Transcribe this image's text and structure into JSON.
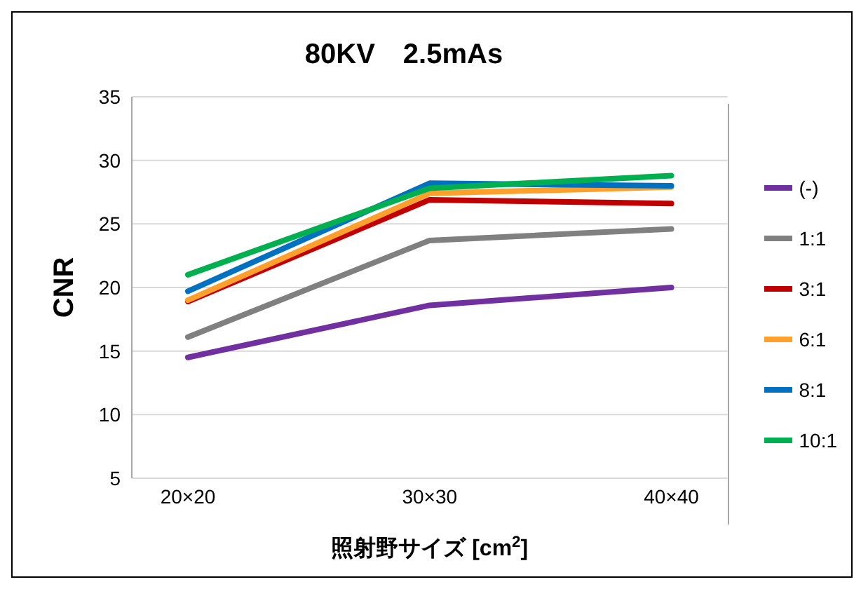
{
  "chart_data": {
    "type": "line",
    "title": "80KV　2.5mAs",
    "xlabel": "照射野サイズ  [cm$^{2}$]",
    "ylabel": "CNR",
    "categories": [
      "20×20",
      "30×30",
      "40×40"
    ],
    "series": [
      {
        "name": "(-)",
        "color": "#7030a0",
        "values": [
          14.5,
          18.6,
          20.0
        ]
      },
      {
        "name": "1:1",
        "color": "#808080",
        "values": [
          16.1,
          23.7,
          24.6
        ]
      },
      {
        "name": "3:1",
        "color": "#c00000",
        "values": [
          18.9,
          26.9,
          26.6
        ]
      },
      {
        "name": "6:1",
        "color": "#ffa02c",
        "values": [
          19.0,
          27.4,
          27.9
        ]
      },
      {
        "name": "8:1",
        "color": "#0070c0",
        "values": [
          19.7,
          28.2,
          28.0
        ]
      },
      {
        "name": "10:1",
        "color": "#00b050",
        "values": [
          21.0,
          27.8,
          28.8
        ]
      }
    ],
    "ylim": [
      5,
      35
    ],
    "yticks": [
      5,
      10,
      15,
      20,
      25,
      30,
      35
    ],
    "grid": "y",
    "legend": "right",
    "marker": "none",
    "line_style": "solid"
  }
}
